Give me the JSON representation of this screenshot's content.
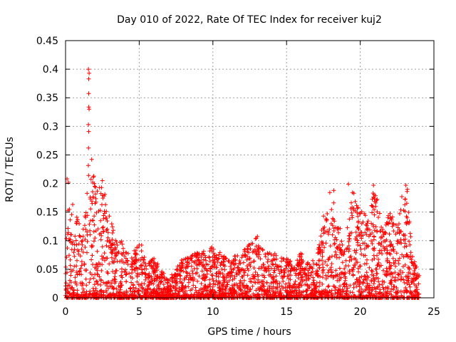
{
  "chart_data": {
    "type": "scatter",
    "title": "Day 010 of 2022, Rate Of TEC Index for receiver kuj2",
    "xlabel": "GPS time / hours",
    "ylabel": "ROTI / TECUs",
    "xlim": [
      0,
      25
    ],
    "ylim": [
      0,
      0.45
    ],
    "grid": true,
    "marker": "plus",
    "series_color": "#ff0000",
    "x_ticks": [
      0,
      5,
      10,
      15,
      20,
      25
    ],
    "x_tick_labels": [
      "0",
      "5",
      "10",
      "15",
      "20",
      "25"
    ],
    "y_ticks": [
      0,
      0.05,
      0.1,
      0.15,
      0.2,
      0.25,
      0.3,
      0.35,
      0.4,
      0.45
    ],
    "y_tick_labels": [
      "0",
      "0.05",
      "0.1",
      "0.15",
      "0.2",
      "0.25",
      "0.3",
      "0.35",
      "0.4",
      "0.45"
    ],
    "envelope": {
      "x": [
        0.0,
        0.2,
        0.5,
        0.8,
        1.0,
        1.3,
        1.5,
        1.6,
        1.7,
        2.0,
        2.5,
        3.0,
        3.5,
        4.0,
        4.5,
        5.0,
        5.5,
        6.0,
        6.5,
        7.0,
        7.5,
        8.0,
        9.0,
        10.0,
        11.0,
        12.0,
        13.0,
        13.5,
        14.0,
        15.0,
        15.5,
        16.0,
        16.5,
        17.0,
        17.5,
        18.0,
        18.5,
        19.0,
        19.5,
        20.0,
        20.5,
        21.0,
        21.5,
        22.0,
        22.5,
        23.0,
        23.2,
        23.5,
        24.0
      ],
      "y": [
        0.08,
        0.21,
        0.17,
        0.14,
        0.13,
        0.14,
        0.26,
        0.4,
        0.26,
        0.2,
        0.2,
        0.15,
        0.1,
        0.11,
        0.07,
        0.11,
        0.06,
        0.07,
        0.05,
        0.03,
        0.06,
        0.07,
        0.08,
        0.09,
        0.07,
        0.08,
        0.11,
        0.08,
        0.08,
        0.07,
        0.06,
        0.08,
        0.06,
        0.07,
        0.15,
        0.19,
        0.13,
        0.1,
        0.2,
        0.16,
        0.14,
        0.2,
        0.12,
        0.15,
        0.14,
        0.2,
        0.19,
        0.08,
        0.04
      ]
    },
    "notable_points": [
      {
        "x": 1.55,
        "y": 0.4
      },
      {
        "x": 1.6,
        "y": 0.393
      },
      {
        "x": 1.57,
        "y": 0.383
      },
      {
        "x": 1.6,
        "y": 0.33
      },
      {
        "x": 1.55,
        "y": 0.303
      },
      {
        "x": 0.1,
        "y": 0.208
      },
      {
        "x": 1.95,
        "y": 0.2
      },
      {
        "x": 2.5,
        "y": 0.205
      },
      {
        "x": 18.2,
        "y": 0.188
      },
      {
        "x": 19.2,
        "y": 0.199
      },
      {
        "x": 20.9,
        "y": 0.197
      },
      {
        "x": 20.9,
        "y": 0.176
      },
      {
        "x": 23.1,
        "y": 0.197
      },
      {
        "x": 23.2,
        "y": 0.19
      }
    ],
    "seed": 10
  }
}
